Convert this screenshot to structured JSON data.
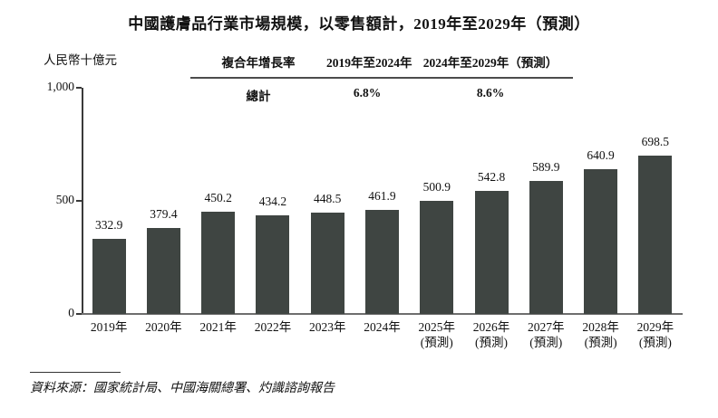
{
  "title": "中國護膚品行業市場規模，以零售額計，2019年至2029年（預測）",
  "y_axis": {
    "unit": "人民幣十億元",
    "ticks": [
      {
        "value": 0,
        "label": "0"
      },
      {
        "value": 500,
        "label": "500"
      },
      {
        "value": 1000,
        "label": "1,000"
      }
    ]
  },
  "cagr_table": {
    "header": [
      "複合年增長率",
      "2019年至2024年",
      "2024年至2029年（預測）"
    ],
    "row": [
      "總計",
      "6.8%",
      "8.6%"
    ]
  },
  "chart_data": {
    "type": "bar",
    "title": "中國護膚品行業市場規模，以零售額計，2019年至2029年（預測）",
    "xlabel": "",
    "ylabel": "人民幣十億元",
    "ylim": [
      0,
      1000
    ],
    "grid": false,
    "categories": [
      "2019年",
      "2020年",
      "2021年",
      "2022年",
      "2023年",
      "2024年",
      "2025年",
      "2026年",
      "2027年",
      "2028年",
      "2029年"
    ],
    "sublabels": [
      "",
      "",
      "",
      "",
      "",
      "",
      "(預測)",
      "(預測)",
      "(預測)",
      "(預測)",
      "(預測)"
    ],
    "values": [
      332.9,
      379.4,
      450.2,
      434.2,
      448.5,
      461.9,
      500.9,
      542.8,
      589.9,
      640.9,
      698.5
    ],
    "bar_color": "#3f4542",
    "annotations": {
      "cagr_label": "複合年增長率",
      "cagr_total_label": "總計",
      "cagr_2019_2024": "6.8%",
      "cagr_2024_2029": "8.6%"
    }
  },
  "source": "資料來源：國家統計局、中國海關總署、灼識諮詢報告"
}
